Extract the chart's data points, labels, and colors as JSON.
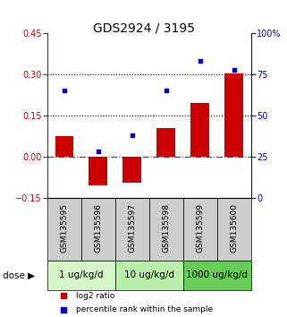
{
  "title": "GDS2924 / 3195",
  "samples": [
    "GSM135595",
    "GSM135596",
    "GSM135597",
    "GSM135598",
    "GSM135599",
    "GSM135600"
  ],
  "dose_groups": [
    {
      "label": "1 ug/kg/d",
      "cols": [
        0,
        1
      ],
      "color": "#d4f5c8"
    },
    {
      "label": "10 ug/kg/d",
      "cols": [
        2,
        3
      ],
      "color": "#b8edaa"
    },
    {
      "label": "1000 ug/kg/d",
      "cols": [
        4,
        5
      ],
      "color": "#66cc55"
    }
  ],
  "log2_ratio": [
    0.075,
    -0.105,
    -0.095,
    0.105,
    0.195,
    0.305
  ],
  "percentile_rank": [
    65,
    28,
    38,
    65,
    83,
    78
  ],
  "left_ylim": [
    -0.15,
    0.45
  ],
  "left_yticks": [
    -0.15,
    0.0,
    0.15,
    0.3,
    0.45
  ],
  "right_ylim": [
    0,
    100
  ],
  "right_yticks": [
    0,
    25,
    50,
    75,
    100
  ],
  "right_yticklabels": [
    "0",
    "25",
    "50",
    "75",
    "100%"
  ],
  "bar_color": "#cc0000",
  "scatter_color": "#0000cc",
  "hline_y": [
    0.15,
    0.3
  ],
  "zero_line_color": "#cc0000",
  "sample_bg_color": "#cccccc",
  "legend_bar_label": "log2 ratio",
  "legend_scatter_label": "percentile rank within the sample",
  "dose_label": "dose",
  "title_fontsize": 10,
  "tick_fontsize": 7,
  "dose_fontsize": 7.5,
  "sample_fontsize": 6.5
}
